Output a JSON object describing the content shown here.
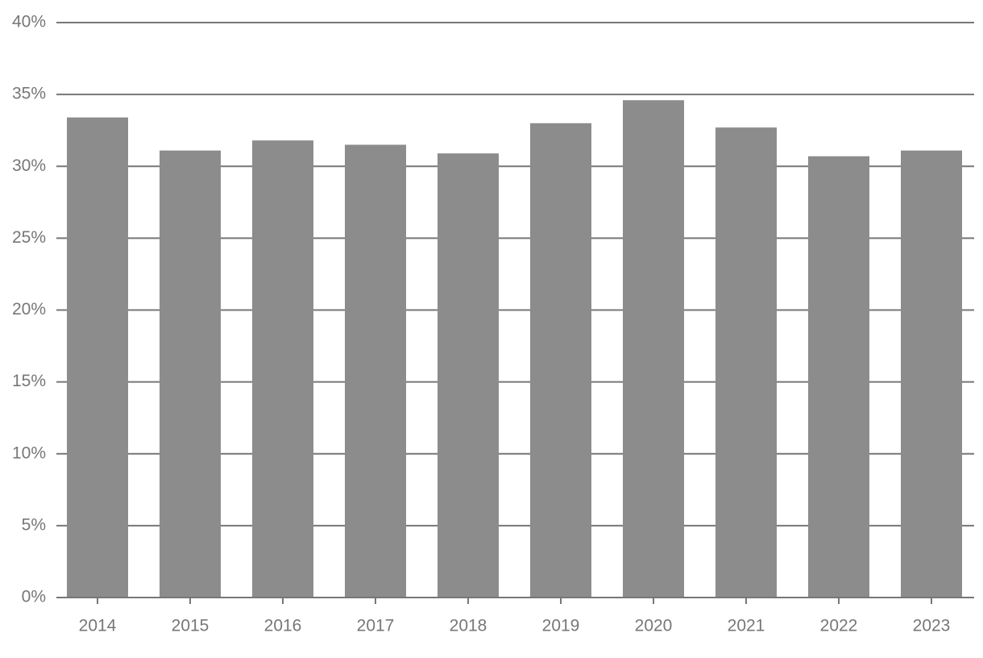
{
  "chart_data": {
    "type": "bar",
    "categories": [
      "2014",
      "2015",
      "2016",
      "2017",
      "2018",
      "2019",
      "2020",
      "2021",
      "2022",
      "2023"
    ],
    "values": [
      33.4,
      31.1,
      31.8,
      31.5,
      30.9,
      33.0,
      34.6,
      32.7,
      30.7,
      31.1
    ],
    "color": "#8c8c8c",
    "ylim": [
      0,
      40
    ],
    "yticks": [
      {
        "value": 0,
        "label": "0%"
      },
      {
        "value": 5,
        "label": "5%"
      },
      {
        "value": 10,
        "label": "10%"
      },
      {
        "value": 15,
        "label": "15%"
      },
      {
        "value": 20,
        "label": "20%"
      },
      {
        "value": 25,
        "label": "25%"
      },
      {
        "value": 30,
        "label": "30%"
      },
      {
        "value": 35,
        "label": "35%"
      },
      {
        "value": 40,
        "label": "40%"
      }
    ],
    "grid": true
  }
}
